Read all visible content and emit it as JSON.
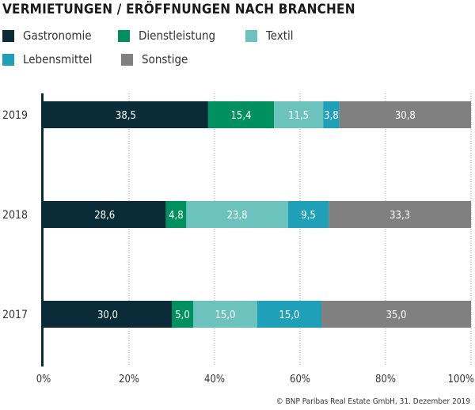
{
  "chart_data": {
    "type": "bar",
    "orientation": "horizontal",
    "stacked": true,
    "title": "VERMIETUNGEN / ERÖFFNUNGEN NACH BRANCHEN",
    "categories": [
      "2019",
      "2018",
      "2017"
    ],
    "series": [
      {
        "name": "Gastronomie",
        "color": "#0a2c38",
        "values": [
          38.5,
          28.6,
          30.0
        ],
        "labels": [
          "38,5",
          "28,6",
          "30,0"
        ]
      },
      {
        "name": "Dienstleistung",
        "color": "#00905f",
        "values": [
          15.4,
          4.8,
          5.0
        ],
        "labels": [
          "15,4",
          "4,8",
          "5,0"
        ]
      },
      {
        "name": "Textil",
        "color": "#6cc2bd",
        "values": [
          11.5,
          23.8,
          15.0
        ],
        "labels": [
          "11,5",
          "23,8",
          "15,0"
        ]
      },
      {
        "name": "Lebensmittel",
        "color": "#1fa0b8",
        "values": [
          3.8,
          9.5,
          15.0
        ],
        "labels": [
          "3,8",
          "9,5",
          "15,0"
        ]
      },
      {
        "name": "Sonstige",
        "color": "#808080",
        "values": [
          30.8,
          33.3,
          35.0
        ],
        "labels": [
          "30,8",
          "33,3",
          "35,0"
        ]
      }
    ],
    "xlim": [
      0,
      100
    ],
    "xticks": [
      "0%",
      "20%",
      "40%",
      "60%",
      "80%",
      "100%"
    ],
    "grid": "dotted vertical",
    "legend": "top-left"
  },
  "source": "© BNP Paribas Real Estate GmbH, 31. Dezember 2019"
}
